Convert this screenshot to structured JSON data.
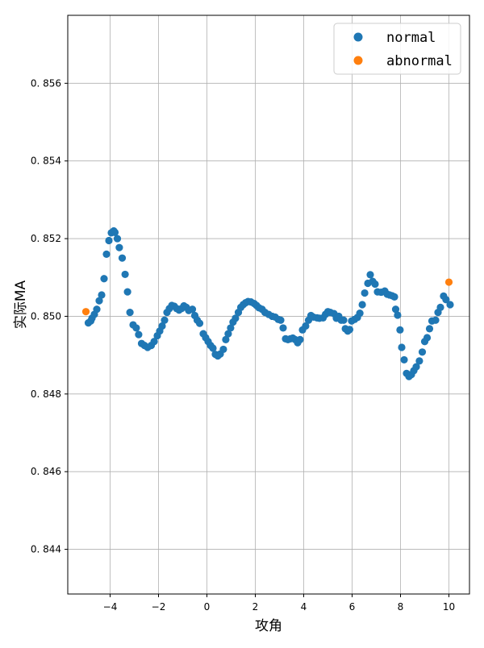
{
  "chart_data": {
    "type": "scatter",
    "xlabel": "攻角",
    "ylabel": "实际MA",
    "xlim": [
      -5.75,
      10.85
    ],
    "ylim": [
      0.84285,
      0.85775
    ],
    "xticks": [
      -4,
      -2,
      0,
      2,
      4,
      6,
      8,
      10
    ],
    "yticks": [
      0.844,
      0.846,
      0.848,
      0.85,
      0.852,
      0.854,
      0.856
    ],
    "xtick_labels": [
      "−4",
      "−2",
      "0",
      "2",
      "4",
      "6",
      "8",
      "10"
    ],
    "ytick_labels": [
      "0. 844",
      "0. 846",
      "0. 848",
      "0. 850",
      "0. 852",
      "0. 854",
      "0. 856"
    ],
    "grid": true,
    "legend_position": "top-right",
    "series": [
      {
        "name": "normal",
        "color": "#1f77b4",
        "points": [
          [
            -4.9,
            0.84983
          ],
          [
            -4.8,
            0.84988
          ],
          [
            -4.75,
            0.84995
          ],
          [
            -4.65,
            0.85005
          ],
          [
            -4.55,
            0.85018
          ],
          [
            -4.45,
            0.8504
          ],
          [
            -4.35,
            0.85055
          ],
          [
            -4.25,
            0.85097
          ],
          [
            -4.15,
            0.8516
          ],
          [
            -4.05,
            0.85195
          ],
          [
            -3.95,
            0.85215
          ],
          [
            -3.85,
            0.8522
          ],
          [
            -3.8,
            0.85216
          ],
          [
            -3.7,
            0.852
          ],
          [
            -3.62,
            0.85177
          ],
          [
            -3.5,
            0.8515
          ],
          [
            -3.38,
            0.85108
          ],
          [
            -3.28,
            0.85063
          ],
          [
            -3.18,
            0.8501
          ],
          [
            -3.05,
            0.84978
          ],
          [
            -2.92,
            0.8497
          ],
          [
            -2.82,
            0.84953
          ],
          [
            -2.7,
            0.8493
          ],
          [
            -2.58,
            0.84925
          ],
          [
            -2.45,
            0.8492
          ],
          [
            -2.3,
            0.84925
          ],
          [
            -2.18,
            0.84935
          ],
          [
            -2.05,
            0.8495
          ],
          [
            -1.95,
            0.84962
          ],
          [
            -1.85,
            0.84975
          ],
          [
            -1.75,
            0.8499
          ],
          [
            -1.65,
            0.8501
          ],
          [
            -1.55,
            0.8502
          ],
          [
            -1.45,
            0.85028
          ],
          [
            -1.35,
            0.85026
          ],
          [
            -1.25,
            0.8502
          ],
          [
            -1.15,
            0.85016
          ],
          [
            -1.05,
            0.8502
          ],
          [
            -0.95,
            0.85027
          ],
          [
            -0.85,
            0.85023
          ],
          [
            -0.75,
            0.85015
          ],
          [
            -0.6,
            0.85018
          ],
          [
            -0.5,
            0.85002
          ],
          [
            -0.4,
            0.8499
          ],
          [
            -0.3,
            0.84982
          ],
          [
            -0.15,
            0.84955
          ],
          [
            -0.05,
            0.84945
          ],
          [
            0.05,
            0.84935
          ],
          [
            0.15,
            0.84925
          ],
          [
            0.25,
            0.84918
          ],
          [
            0.35,
            0.84902
          ],
          [
            0.45,
            0.84898
          ],
          [
            0.55,
            0.84903
          ],
          [
            0.68,
            0.84915
          ],
          [
            0.78,
            0.8494
          ],
          [
            0.88,
            0.84955
          ],
          [
            0.98,
            0.8497
          ],
          [
            1.08,
            0.84985
          ],
          [
            1.18,
            0.84995
          ],
          [
            1.3,
            0.8501
          ],
          [
            1.4,
            0.85023
          ],
          [
            1.5,
            0.8503
          ],
          [
            1.6,
            0.85035
          ],
          [
            1.7,
            0.85038
          ],
          [
            1.82,
            0.85037
          ],
          [
            1.95,
            0.85033
          ],
          [
            2.05,
            0.85028
          ],
          [
            2.15,
            0.85022
          ],
          [
            2.28,
            0.85018
          ],
          [
            2.4,
            0.8501
          ],
          [
            2.55,
            0.85005
          ],
          [
            2.7,
            0.85
          ],
          [
            2.82,
            0.84998
          ],
          [
            2.95,
            0.84992
          ],
          [
            3.05,
            0.8499
          ],
          [
            3.15,
            0.8497
          ],
          [
            3.25,
            0.84942
          ],
          [
            3.35,
            0.8494
          ],
          [
            3.45,
            0.84942
          ],
          [
            3.55,
            0.84944
          ],
          [
            3.65,
            0.8494
          ],
          [
            3.75,
            0.84932
          ],
          [
            3.85,
            0.8494
          ],
          [
            3.95,
            0.84965
          ],
          [
            4.08,
            0.84975
          ],
          [
            4.2,
            0.8499
          ],
          [
            4.3,
            0.85002
          ],
          [
            4.4,
            0.84998
          ],
          [
            4.55,
            0.84996
          ],
          [
            4.65,
            0.84995
          ],
          [
            4.8,
            0.84996
          ],
          [
            4.9,
            0.85005
          ],
          [
            5.0,
            0.85012
          ],
          [
            5.1,
            0.8501
          ],
          [
            5.25,
            0.85007
          ],
          [
            5.35,
            0.84995
          ],
          [
            5.45,
            0.85
          ],
          [
            5.55,
            0.8499
          ],
          [
            5.65,
            0.8499
          ],
          [
            5.72,
            0.84968
          ],
          [
            5.82,
            0.84962
          ],
          [
            5.9,
            0.84966
          ],
          [
            5.98,
            0.84988
          ],
          [
            6.1,
            0.84992
          ],
          [
            6.22,
            0.84997
          ],
          [
            6.32,
            0.85008
          ],
          [
            6.42,
            0.8503
          ],
          [
            6.52,
            0.8506
          ],
          [
            6.65,
            0.85085
          ],
          [
            6.75,
            0.85107
          ],
          [
            6.85,
            0.8509
          ],
          [
            6.95,
            0.85083
          ],
          [
            7.05,
            0.85063
          ],
          [
            7.2,
            0.85062
          ],
          [
            7.35,
            0.85065
          ],
          [
            7.45,
            0.85057
          ],
          [
            7.55,
            0.85055
          ],
          [
            7.65,
            0.85053
          ],
          [
            7.75,
            0.8505
          ],
          [
            7.8,
            0.85018
          ],
          [
            7.88,
            0.85003
          ],
          [
            7.98,
            0.84965
          ],
          [
            8.05,
            0.8492
          ],
          [
            8.15,
            0.84888
          ],
          [
            8.25,
            0.84853
          ],
          [
            8.35,
            0.84845
          ],
          [
            8.45,
            0.8485
          ],
          [
            8.55,
            0.8486
          ],
          [
            8.65,
            0.8487
          ],
          [
            8.78,
            0.84885
          ],
          [
            8.9,
            0.84908
          ],
          [
            9.0,
            0.84935
          ],
          [
            9.1,
            0.84945
          ],
          [
            9.2,
            0.84968
          ],
          [
            9.3,
            0.84988
          ],
          [
            9.45,
            0.8499
          ],
          [
            9.55,
            0.8501
          ],
          [
            9.65,
            0.85023
          ],
          [
            9.78,
            0.85052
          ],
          [
            9.88,
            0.85043
          ],
          [
            10.05,
            0.8503
          ]
        ]
      },
      {
        "name": "abnormal",
        "color": "#ff7f0e",
        "points": [
          [
            -5.0,
            0.85012
          ],
          [
            10.0,
            0.85088
          ]
        ]
      }
    ]
  }
}
